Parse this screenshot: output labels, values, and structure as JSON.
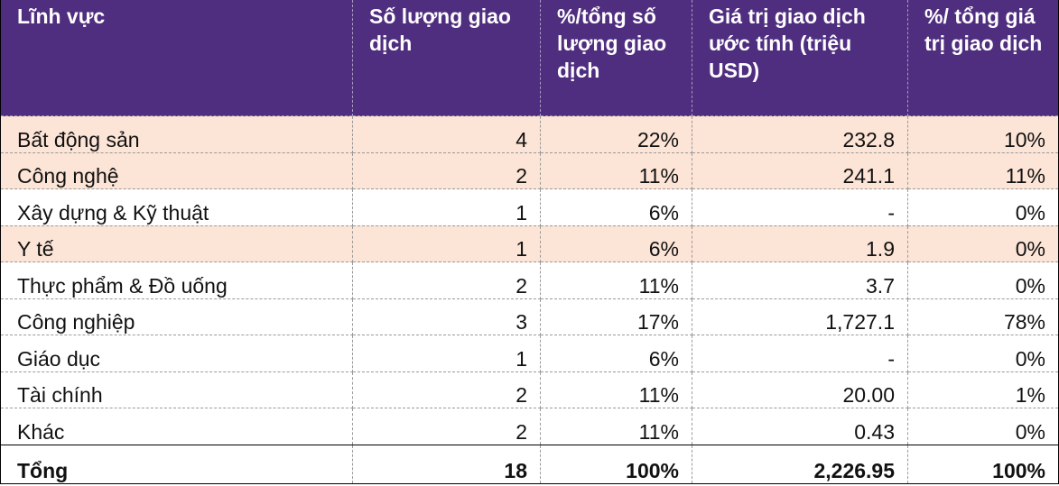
{
  "table": {
    "header_color": "#4F2D7F",
    "highlight_color": "#FCE4D6",
    "headers": [
      "Lĩnh vực",
      "Số lượng giao dịch",
      "%/tổng số lượng giao dịch",
      "Giá trị giao dịch ước tính (triệu USD)",
      "%/ tổng giá trị giao dịch"
    ],
    "rows": [
      {
        "sector": "Bất động sản",
        "count": "4",
        "count_pct": "22%",
        "value": "232.8",
        "value_pct": "10%",
        "highlighted": true
      },
      {
        "sector": "Công nghệ",
        "count": "2",
        "count_pct": "11%",
        "value": "241.1",
        "value_pct": "11%",
        "highlighted": true
      },
      {
        "sector": "Xây dựng & Kỹ thuật",
        "count": "1",
        "count_pct": "6%",
        "value": "-",
        "value_pct": "0%",
        "highlighted": false
      },
      {
        "sector": "Y tế",
        "count": "1",
        "count_pct": "6%",
        "value": "1.9",
        "value_pct": "0%",
        "highlighted": true
      },
      {
        "sector": "Thực phẩm & Đồ uống",
        "count": "2",
        "count_pct": "11%",
        "value": "3.7",
        "value_pct": "0%",
        "highlighted": false
      },
      {
        "sector": "Công nghiệp",
        "count": "3",
        "count_pct": "17%",
        "value": "1,727.1",
        "value_pct": "78%",
        "highlighted": false
      },
      {
        "sector": "Giáo dục",
        "count": "1",
        "count_pct": "6%",
        "value": "-",
        "value_pct": "0%",
        "highlighted": false
      },
      {
        "sector": "Tài chính",
        "count": "2",
        "count_pct": "11%",
        "value": "20.00",
        "value_pct": "1%",
        "highlighted": false
      },
      {
        "sector": "Khác",
        "count": "2",
        "count_pct": "11%",
        "value": "0.43",
        "value_pct": "0%",
        "highlighted": false
      }
    ],
    "total": {
      "sector": "Tổng",
      "count": "18",
      "count_pct": "100%",
      "value": "2,226.95",
      "value_pct": "100%"
    }
  }
}
